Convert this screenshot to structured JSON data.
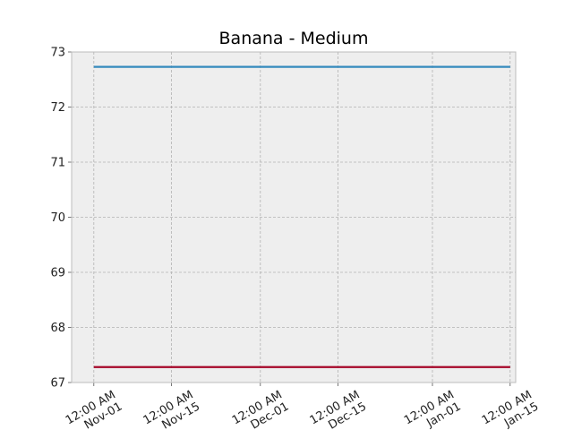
{
  "chart_data": {
    "type": "line",
    "title": "Banana - Medium",
    "xlabel": "",
    "ylabel": "",
    "x_axis_type": "date",
    "xlim": [
      "2023-10-28",
      "2024-01-16"
    ],
    "ylim": [
      67,
      73
    ],
    "yticks": [
      67,
      68,
      69,
      70,
      71,
      72,
      73
    ],
    "xticks": [
      {
        "date": "2023-11-01",
        "label_line1": "12:00 AM",
        "label_line2": "Nov-01"
      },
      {
        "date": "2023-11-15",
        "label_line1": "12:00 AM",
        "label_line2": "Nov-15"
      },
      {
        "date": "2023-12-01",
        "label_line1": "12:00 AM",
        "label_line2": "Dec-01"
      },
      {
        "date": "2023-12-15",
        "label_line1": "12:00 AM",
        "label_line2": "Dec-15"
      },
      {
        "date": "2024-01-01",
        "label_line1": "12:00 AM",
        "label_line2": "Jan-01"
      },
      {
        "date": "2024-01-15",
        "label_line1": "12:00 AM",
        "label_line2": "Jan-15"
      }
    ],
    "grid": true,
    "legend": "none",
    "series": [
      {
        "color": "#348ABD",
        "x": [
          "2023-11-01",
          "2024-01-15"
        ],
        "y": [
          72.73,
          72.73
        ]
      },
      {
        "color": "#A60628",
        "x": [
          "2023-11-01",
          "2024-01-15"
        ],
        "y": [
          67.28,
          67.28
        ]
      }
    ]
  },
  "colors": {
    "plot_background": "#EEEEEE",
    "grid": "#B2B2B2",
    "axes_edge": "#BCBCBC"
  }
}
